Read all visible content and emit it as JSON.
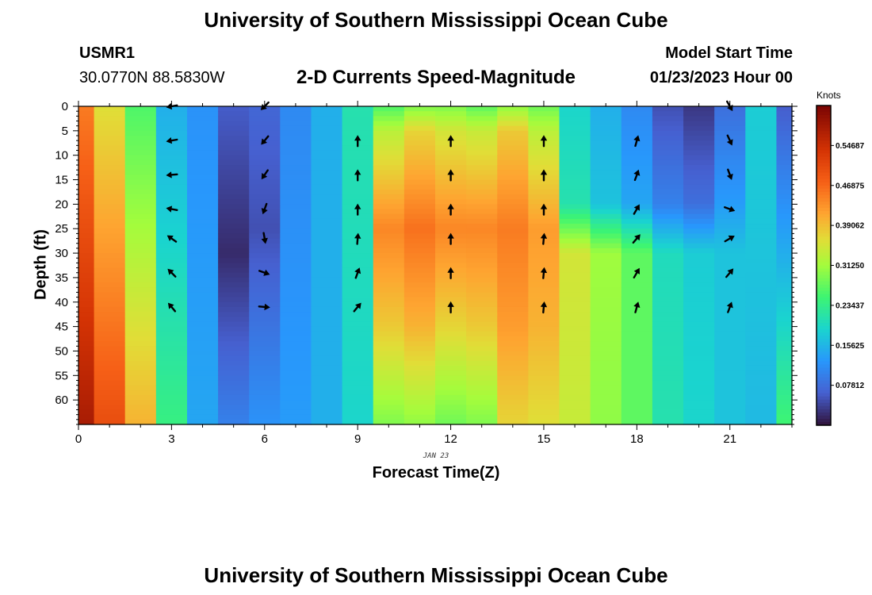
{
  "header": {
    "title": "University of Southern Mississippi Ocean Cube",
    "station_id": "USMR1",
    "location": "30.0770N  88.5830W",
    "subtitle": "2-D Currents Speed-Magnitude",
    "model_start_label": "Model Start Time",
    "model_start_value": "01/23/2023 Hour 00"
  },
  "footer": {
    "title": "University of Southern Mississippi Ocean Cube"
  },
  "colors": {
    "background": "#ffffff",
    "axis": "#000000",
    "arrow": "#000000"
  },
  "chart_data": {
    "type": "heatmap",
    "title": "2-D Currents Speed-Magnitude",
    "xlabel": "Forecast Time(Z)",
    "ylabel": "Depth (ft)",
    "date_label": "JAN 23",
    "xlim": [
      0,
      23
    ],
    "ylim": [
      0,
      65
    ],
    "x_ticks": [
      0,
      3,
      6,
      9,
      12,
      15,
      18,
      21
    ],
    "y_ticks": [
      0,
      5,
      10,
      15,
      20,
      25,
      30,
      35,
      40,
      45,
      50,
      55,
      60
    ],
    "colorbar": {
      "label": "Knots",
      "range": [
        0,
        0.625
      ],
      "ticks": [
        "0.54687",
        "0.46875",
        "0.39062",
        "0.31250",
        "0.23437",
        "0.15625",
        "0.07812"
      ],
      "tick_values": [
        0.54687,
        0.46875,
        0.39062,
        0.3125,
        0.23437,
        0.15625,
        0.07812
      ]
    },
    "speed_profiles": [
      {
        "hour": 0,
        "depths": [
          0,
          65
        ],
        "speeds": [
          0.45,
          0.58
        ]
      },
      {
        "hour": 1,
        "depths": [
          0,
          65
        ],
        "speeds": [
          0.36,
          0.5
        ]
      },
      {
        "hour": 2,
        "depths": [
          0,
          65
        ],
        "speeds": [
          0.26,
          0.4
        ]
      },
      {
        "hour": 3,
        "depths": [
          0,
          65
        ],
        "speeds": [
          0.15,
          0.24
        ]
      },
      {
        "hour": 4,
        "depths": [
          0,
          65
        ],
        "speeds": [
          0.12,
          0.14
        ]
      },
      {
        "hour": 5,
        "depths": [
          0,
          30,
          65
        ],
        "speeds": [
          0.06,
          0.02,
          0.1
        ]
      },
      {
        "hour": 6,
        "depths": [
          0,
          25,
          65
        ],
        "speeds": [
          0.07,
          0.05,
          0.12
        ]
      },
      {
        "hour": 7,
        "depths": [
          0,
          65
        ],
        "speeds": [
          0.11,
          0.13
        ]
      },
      {
        "hour": 8,
        "depths": [
          0,
          65
        ],
        "speeds": [
          0.15,
          0.15
        ]
      },
      {
        "hour": 9,
        "depths": [
          0,
          65
        ],
        "speeds": [
          0.21,
          0.19
        ]
      },
      {
        "hour": 10,
        "depths": [
          0,
          5,
          25,
          45,
          65
        ],
        "speeds": [
          0.26,
          0.33,
          0.44,
          0.38,
          0.29
        ]
      },
      {
        "hour": 11,
        "depths": [
          0,
          5,
          25,
          45,
          65
        ],
        "speeds": [
          0.29,
          0.37,
          0.46,
          0.4,
          0.3
        ]
      },
      {
        "hour": 12,
        "depths": [
          0,
          5,
          25,
          45,
          65
        ],
        "speeds": [
          0.29,
          0.35,
          0.44,
          0.37,
          0.28
        ]
      },
      {
        "hour": 13,
        "depths": [
          0,
          5,
          25,
          45,
          65
        ],
        "speeds": [
          0.27,
          0.34,
          0.44,
          0.38,
          0.29
        ]
      },
      {
        "hour": 14,
        "depths": [
          0,
          5,
          25,
          45,
          65
        ],
        "speeds": [
          0.3,
          0.38,
          0.45,
          0.42,
          0.37
        ]
      },
      {
        "hour": 15,
        "depths": [
          0,
          5,
          25,
          45,
          65
        ],
        "speeds": [
          0.28,
          0.33,
          0.42,
          0.4,
          0.36
        ]
      },
      {
        "hour": 16,
        "depths": [
          0,
          20,
          30,
          65
        ],
        "speeds": [
          0.19,
          0.21,
          0.35,
          0.34
        ]
      },
      {
        "hour": 17,
        "depths": [
          0,
          20,
          30,
          65
        ],
        "speeds": [
          0.15,
          0.17,
          0.31,
          0.3
        ]
      },
      {
        "hour": 18,
        "depths": [
          0,
          20,
          30,
          65
        ],
        "speeds": [
          0.11,
          0.14,
          0.27,
          0.27
        ]
      },
      {
        "hour": 19,
        "depths": [
          0,
          20,
          30,
          65
        ],
        "speeds": [
          0.05,
          0.1,
          0.2,
          0.21
        ]
      },
      {
        "hour": 20,
        "depths": [
          0,
          20,
          30,
          65
        ],
        "speeds": [
          0.03,
          0.08,
          0.18,
          0.19
        ]
      },
      {
        "hour": 21,
        "depths": [
          0,
          20,
          30,
          65
        ],
        "speeds": [
          0.08,
          0.13,
          0.17,
          0.17
        ]
      },
      {
        "hour": 22,
        "depths": [
          0,
          65
        ],
        "speeds": [
          0.18,
          0.16
        ]
      },
      {
        "hour": 23,
        "depths": [
          0,
          65
        ],
        "speeds": [
          0.06,
          0.25
        ]
      }
    ],
    "vectors": [
      {
        "hour": 3,
        "depths": [
          0,
          7,
          14,
          21,
          27,
          34,
          41
        ],
        "directions_deg": [
          260,
          260,
          265,
          280,
          305,
          315,
          320
        ]
      },
      {
        "hour": 6,
        "depths": [
          0,
          7,
          14,
          21,
          27,
          34,
          41
        ],
        "directions_deg": [
          225,
          220,
          215,
          200,
          170,
          110,
          95
        ]
      },
      {
        "hour": 9,
        "depths": [
          7,
          14,
          21,
          27,
          34,
          41
        ],
        "directions_deg": [
          0,
          0,
          0,
          5,
          20,
          40
        ]
      },
      {
        "hour": 12,
        "depths": [
          7,
          14,
          21,
          27,
          34,
          41
        ],
        "directions_deg": [
          0,
          0,
          0,
          0,
          0,
          0
        ]
      },
      {
        "hour": 15,
        "depths": [
          7,
          14,
          21,
          27,
          34,
          41
        ],
        "directions_deg": [
          0,
          0,
          0,
          5,
          5,
          5
        ]
      },
      {
        "hour": 18,
        "depths": [
          7,
          14,
          21,
          27,
          34,
          41
        ],
        "directions_deg": [
          15,
          20,
          30,
          40,
          30,
          15
        ]
      },
      {
        "hour": 21,
        "depths": [
          0,
          7,
          14,
          21,
          27,
          34,
          41
        ],
        "directions_deg": [
          150,
          155,
          160,
          110,
          60,
          40,
          20
        ]
      }
    ]
  }
}
